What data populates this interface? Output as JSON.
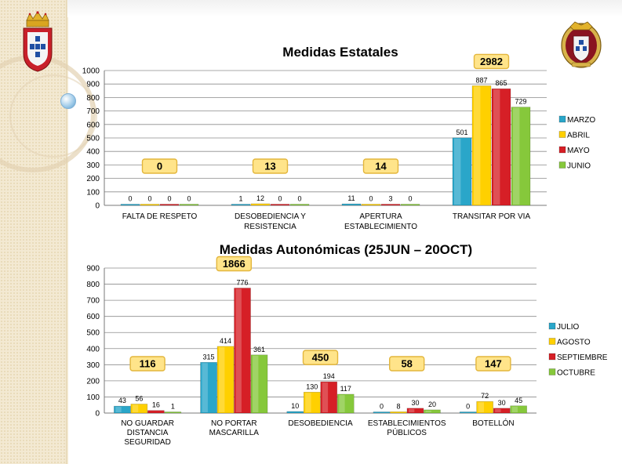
{
  "colors": {
    "teal": "#2aa6c9",
    "yellow": "#ffd000",
    "red": "#d61f26",
    "green": "#86c83b",
    "total_fill": "#ffe48a",
    "total_stroke": "#e3b63c"
  },
  "chart_data": [
    {
      "type": "bar",
      "title": "Medidas Estatales",
      "categories": [
        [
          "FALTA DE RESPETO"
        ],
        [
          "DESOBEDIENCIA  Y",
          "RESISTENCIA"
        ],
        [
          "APERTURA",
          "ESTABLECIMIENTO"
        ],
        [
          "TRANSITAR POR VIA"
        ]
      ],
      "series": [
        {
          "name": "MARZO",
          "values": [
            0,
            1,
            11,
            501
          ]
        },
        {
          "name": "ABRIL",
          "values": [
            0,
            12,
            0,
            887
          ]
        },
        {
          "name": "MAYO",
          "values": [
            0,
            0,
            3,
            865
          ]
        },
        {
          "name": "JUNIO",
          "values": [
            0,
            0,
            0,
            729
          ]
        }
      ],
      "totals": [
        0,
        13,
        14,
        2982
      ],
      "ylim": [
        0,
        1000
      ],
      "yticks": [
        0,
        100,
        200,
        300,
        400,
        500,
        600,
        700,
        800,
        900,
        1000
      ],
      "grid": true,
      "legend": "right"
    },
    {
      "type": "bar",
      "title": "Medidas Autonómicas (25JUN – 20OCT)",
      "categories": [
        [
          "NO GUARDAR",
          "DISTANCIA",
          "SEGURIDAD"
        ],
        [
          "NO PORTAR",
          "MASCARILLA"
        ],
        [
          "DESOBEDIENCIA"
        ],
        [
          "ESTABLECIMIENTOS",
          "PÚBLICOS"
        ],
        [
          "BOTELLÓN"
        ]
      ],
      "series": [
        {
          "name": "JULIO",
          "values": [
            43,
            315,
            10,
            0,
            0
          ]
        },
        {
          "name": "AGOSTO",
          "values": [
            56,
            414,
            130,
            8,
            72
          ]
        },
        {
          "name": "SEPTIEMBRE",
          "values": [
            16,
            776,
            194,
            30,
            30
          ]
        },
        {
          "name": "OCTUBRE",
          "values": [
            1,
            361,
            117,
            20,
            45
          ]
        }
      ],
      "totals": [
        116,
        1866,
        450,
        58,
        147
      ],
      "ylim": [
        0,
        900
      ],
      "yticks": [
        0,
        100,
        200,
        300,
        400,
        500,
        600,
        700,
        800,
        900
      ],
      "grid": true,
      "legend": "right"
    }
  ]
}
